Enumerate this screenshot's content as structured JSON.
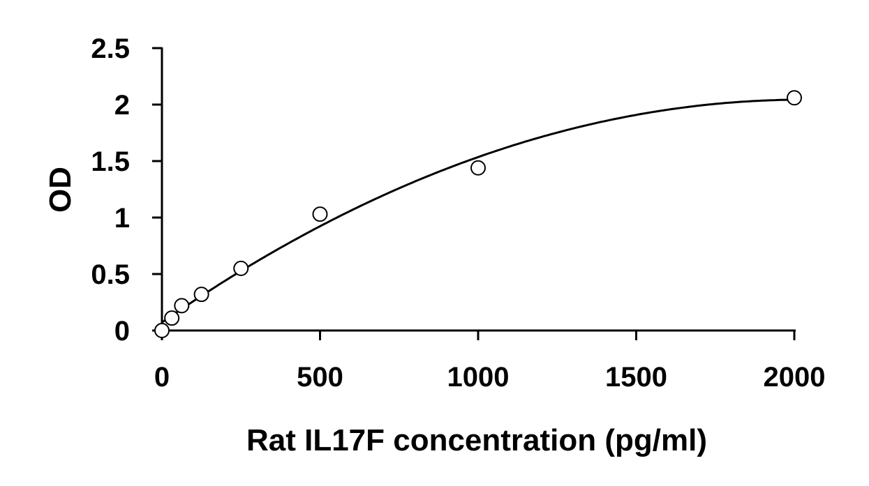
{
  "chart_data": {
    "type": "scatter",
    "title": "",
    "xlabel": "Rat IL17F concentration (pg/ml)",
    "ylabel": "OD",
    "xlim": [
      0,
      2000
    ],
    "ylim": [
      0,
      2.5
    ],
    "x_ticks": [
      "0",
      "500",
      "1000",
      "1500",
      "2000"
    ],
    "y_ticks": [
      "0",
      "0.5",
      "1",
      "1.5",
      "2",
      "2.5"
    ],
    "grid": false,
    "legend": "none",
    "series": [
      {
        "x": [
          0,
          31.25,
          62.5,
          125,
          250,
          500,
          1000,
          2000
        ],
        "y": [
          0.0,
          0.11,
          0.22,
          0.32,
          0.55,
          1.03,
          1.44,
          2.06
        ],
        "marker": "open-circle",
        "trendline": "polynomial-2"
      }
    ],
    "colors": {
      "axis": "#000000",
      "curve": "#000000",
      "marker_fill": "#ffffff"
    }
  }
}
